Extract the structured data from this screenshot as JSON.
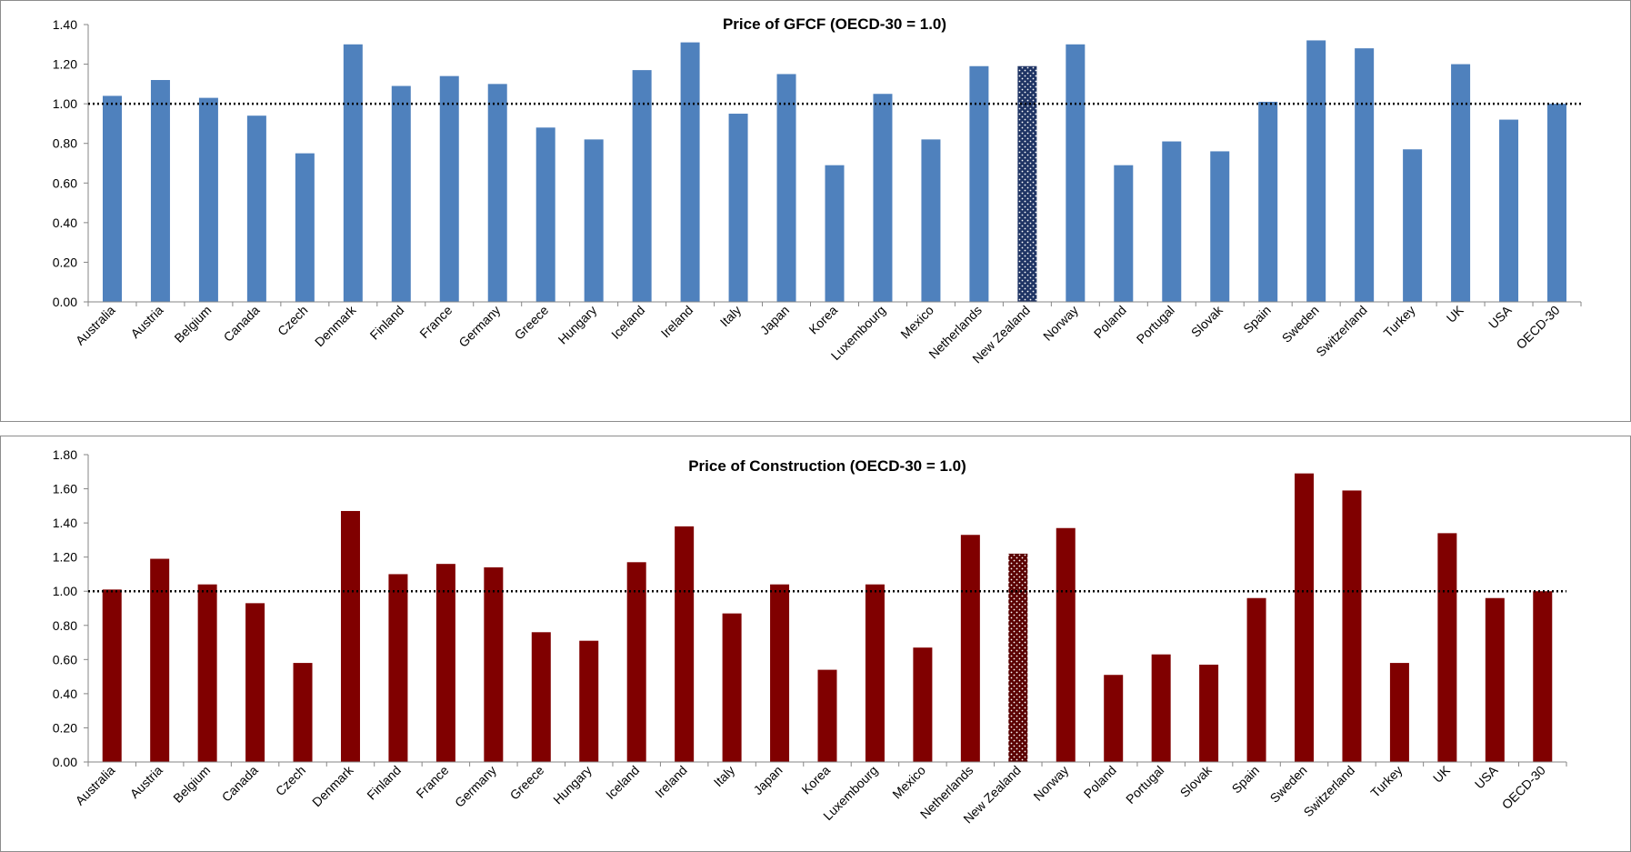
{
  "chart_data": [
    {
      "type": "bar",
      "title": "Price of GFCF (OECD-30 = 1.0)",
      "xlabel": "",
      "ylabel": "",
      "ylim": [
        0,
        1.4
      ],
      "yticks": [
        "0.00",
        "0.20",
        "0.40",
        "0.60",
        "0.80",
        "1.00",
        "1.20",
        "1.40"
      ],
      "reference_line": 1.0,
      "bar_color": "#4f81bd",
      "highlight_category": "New Zealand",
      "highlight_color": "#1f3464",
      "categories": [
        "Australia",
        "Austria",
        "Belgium",
        "Canada",
        "Czech",
        "Denmark",
        "Finland",
        "France",
        "Germany",
        "Greece",
        "Hungary",
        "Iceland",
        "Ireland",
        "Italy",
        "Japan",
        "Korea",
        "Luxembourg",
        "Mexico",
        "Netherlands",
        "New Zealand",
        "Norway",
        "Poland",
        "Portugal",
        "Slovak",
        "Spain",
        "Sweden",
        "Switzerland",
        "Turkey",
        "UK",
        "USA",
        "OECD-30"
      ],
      "values": [
        1.04,
        1.12,
        1.03,
        0.94,
        0.75,
        1.3,
        1.09,
        1.14,
        1.1,
        0.88,
        0.82,
        1.17,
        1.31,
        0.95,
        1.15,
        0.69,
        1.05,
        0.82,
        1.19,
        1.19,
        1.3,
        0.69,
        0.81,
        0.76,
        1.01,
        1.32,
        1.28,
        0.77,
        1.2,
        0.92,
        1.0
      ],
      "grid": false,
      "legend": "none"
    },
    {
      "type": "bar",
      "title": "Price of Construction (OECD-30 = 1.0)",
      "xlabel": "",
      "ylabel": "",
      "ylim": [
        0,
        1.8
      ],
      "yticks": [
        "0.00",
        "0.20",
        "0.40",
        "0.60",
        "0.80",
        "1.00",
        "1.20",
        "1.40",
        "1.60",
        "1.80"
      ],
      "reference_line": 1.0,
      "bar_color": "#800000",
      "highlight_category": "New Zealand",
      "highlight_color": "#5a0000",
      "categories": [
        "Australia",
        "Austria",
        "Belgium",
        "Canada",
        "Czech",
        "Denmark",
        "Finland",
        "France",
        "Germany",
        "Greece",
        "Hungary",
        "Iceland",
        "Ireland",
        "Italy",
        "Japan",
        "Korea",
        "Luxembourg",
        "Mexico",
        "Netherlands",
        "New Zealand",
        "Norway",
        "Poland",
        "Portugal",
        "Slovak",
        "Spain",
        "Sweden",
        "Switzerland",
        "Turkey",
        "UK",
        "USA",
        "OECD-30"
      ],
      "values": [
        1.01,
        1.19,
        1.04,
        0.93,
        0.58,
        1.47,
        1.1,
        1.16,
        1.14,
        0.76,
        0.71,
        1.17,
        1.38,
        0.87,
        1.04,
        0.54,
        1.04,
        0.67,
        1.33,
        1.22,
        1.37,
        0.51,
        0.63,
        0.57,
        0.96,
        1.69,
        1.59,
        0.58,
        1.34,
        0.96,
        1.0
      ],
      "grid": false,
      "legend": "none"
    }
  ]
}
